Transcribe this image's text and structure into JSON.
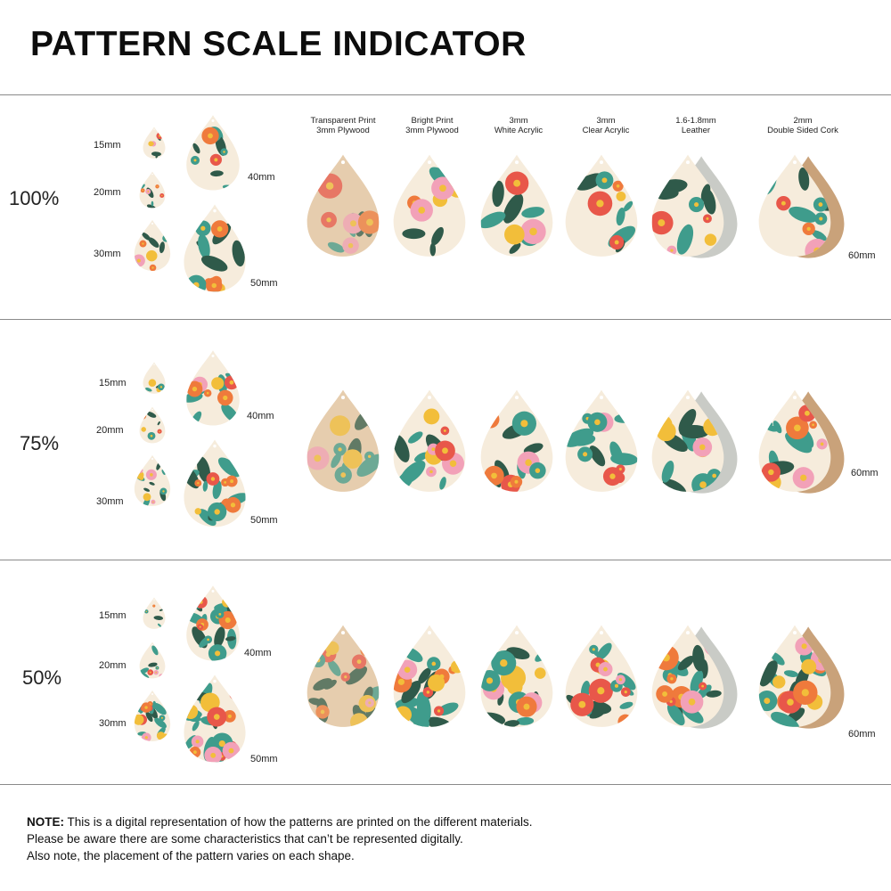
{
  "title": "PATTERN SCALE INDICATOR",
  "materials": [
    {
      "line1": "Transparent Print",
      "line2": "3mm Plywood"
    },
    {
      "line1": "Bright Print",
      "line2": "3mm Plywood"
    },
    {
      "line1": "3mm",
      "line2": "White Acrylic"
    },
    {
      "line1": "3mm",
      "line2": "Clear Acrylic"
    },
    {
      "line1": "1.6-1.8mm",
      "line2": "Leather"
    },
    {
      "line1": "2mm",
      "line2": "Double Sided Cork"
    }
  ],
  "rows": [
    {
      "scale": "100%",
      "sizes": {
        "s15": "15mm",
        "s20": "20mm",
        "s30": "30mm",
        "s40": "40mm",
        "s50": "50mm",
        "s60": "60mm"
      }
    },
    {
      "scale": "75%",
      "sizes": {
        "s15": "15mm",
        "s20": "20mm",
        "s30": "30mm",
        "s40": "40mm",
        "s50": "50mm",
        "s60": "60mm"
      }
    },
    {
      "scale": "50%",
      "sizes": {
        "s15": "15mm",
        "s20": "20mm",
        "s30": "30mm",
        "s40": "40mm",
        "s50": "50mm",
        "s60": "60mm"
      }
    }
  ],
  "note": {
    "label": "NOTE:",
    "line1": " This is a digital representation of how the patterns are printed on the different materials.",
    "line2": "Please be aware there are some characteristics that can’t be represented digitally.",
    "line3": "Also note, the placement of the pattern varies on each shape."
  },
  "colors": {
    "plywood": "#e6cdae",
    "cream": "#f6ecdc",
    "leather": "#c9cbc6",
    "cork": "#c9a27a",
    "coral": "#e8574a",
    "pink": "#f2a1b8",
    "yellow": "#f2be3a",
    "teal": "#3f9c8c",
    "orange": "#ef7a3c",
    "darkgreen": "#2f5a4a"
  }
}
